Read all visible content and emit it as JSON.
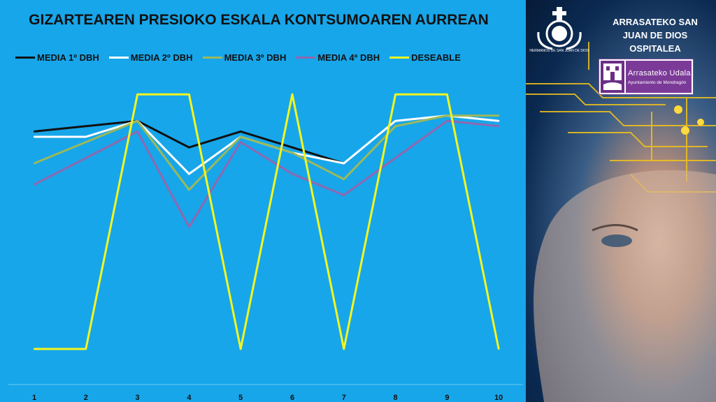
{
  "chart_data": {
    "type": "line",
    "title": "GIZARTEAREN PRESIOKO ESKALA KONTSUMOAREN AURREAN",
    "categories": [
      "1",
      "2",
      "3",
      "4",
      "5",
      "6",
      "7",
      "8",
      "9",
      "10"
    ],
    "series": [
      {
        "name": "MEDIA 1º DBH",
        "color": "#111111",
        "values": [
          4.1,
          4.2,
          4.3,
          3.8,
          4.1,
          3.8,
          3.5,
          null,
          null,
          null
        ]
      },
      {
        "name": "MEDIA 2º DBH",
        "color": "#ffffff",
        "values": [
          4.0,
          4.0,
          4.3,
          3.3,
          4.0,
          3.7,
          3.5,
          4.3,
          4.4,
          4.3
        ]
      },
      {
        "name": "MEDIA 3º DBH",
        "color": "#9cb85a",
        "values": [
          3.5,
          3.9,
          4.3,
          3.0,
          4.0,
          3.7,
          3.2,
          4.2,
          4.4,
          4.4
        ]
      },
      {
        "name": "MEDIA 4º DBH",
        "color": "#8f68b0",
        "values": [
          3.1,
          3.6,
          4.1,
          2.3,
          3.9,
          3.3,
          2.9,
          3.6,
          4.3,
          4.2
        ]
      },
      {
        "name": "DESEABLE",
        "color": "#f4f51e",
        "values": [
          0,
          0,
          4.8,
          4.8,
          0,
          4.8,
          0,
          4.8,
          4.8,
          0
        ]
      }
    ],
    "ylim": [
      0,
      5
    ],
    "xlabel": "",
    "ylabel": "",
    "grid": false,
    "legend_position": "top"
  },
  "side": {
    "hospital_lines": [
      "ARRASATEKO SAN",
      "JUAN DE DIOS",
      "OSPITALEA"
    ],
    "logo_caption": "HERMANOS DE SAN JUAN DE DIOS",
    "municipal_name": "Arrasateko Udala",
    "municipal_sub": "Ayuntamiento de Mondragón"
  },
  "colors": {
    "chart_background": "#17a6ea",
    "accent_yellow": "#f4f51e",
    "municipal_purple": "#7b3a97"
  }
}
